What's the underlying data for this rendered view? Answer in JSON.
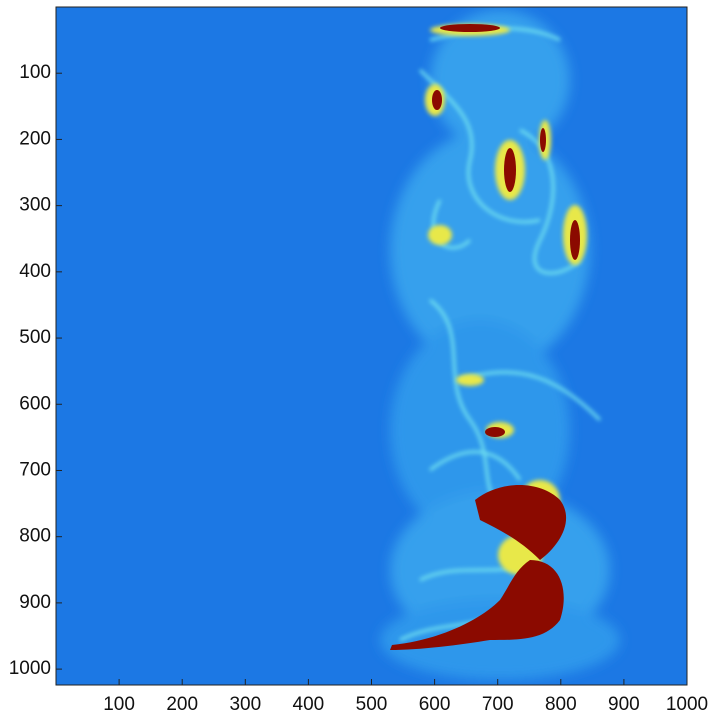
{
  "chart_data": {
    "type": "image",
    "xlim": [
      0,
      1000
    ],
    "ylim": [
      0,
      1024
    ],
    "xticks": [
      100,
      200,
      300,
      400,
      500,
      600,
      700,
      800,
      900,
      1000
    ],
    "yticks": [
      100,
      200,
      300,
      400,
      500,
      600,
      700,
      800,
      900,
      1000
    ],
    "y_reversed": true
  }
}
